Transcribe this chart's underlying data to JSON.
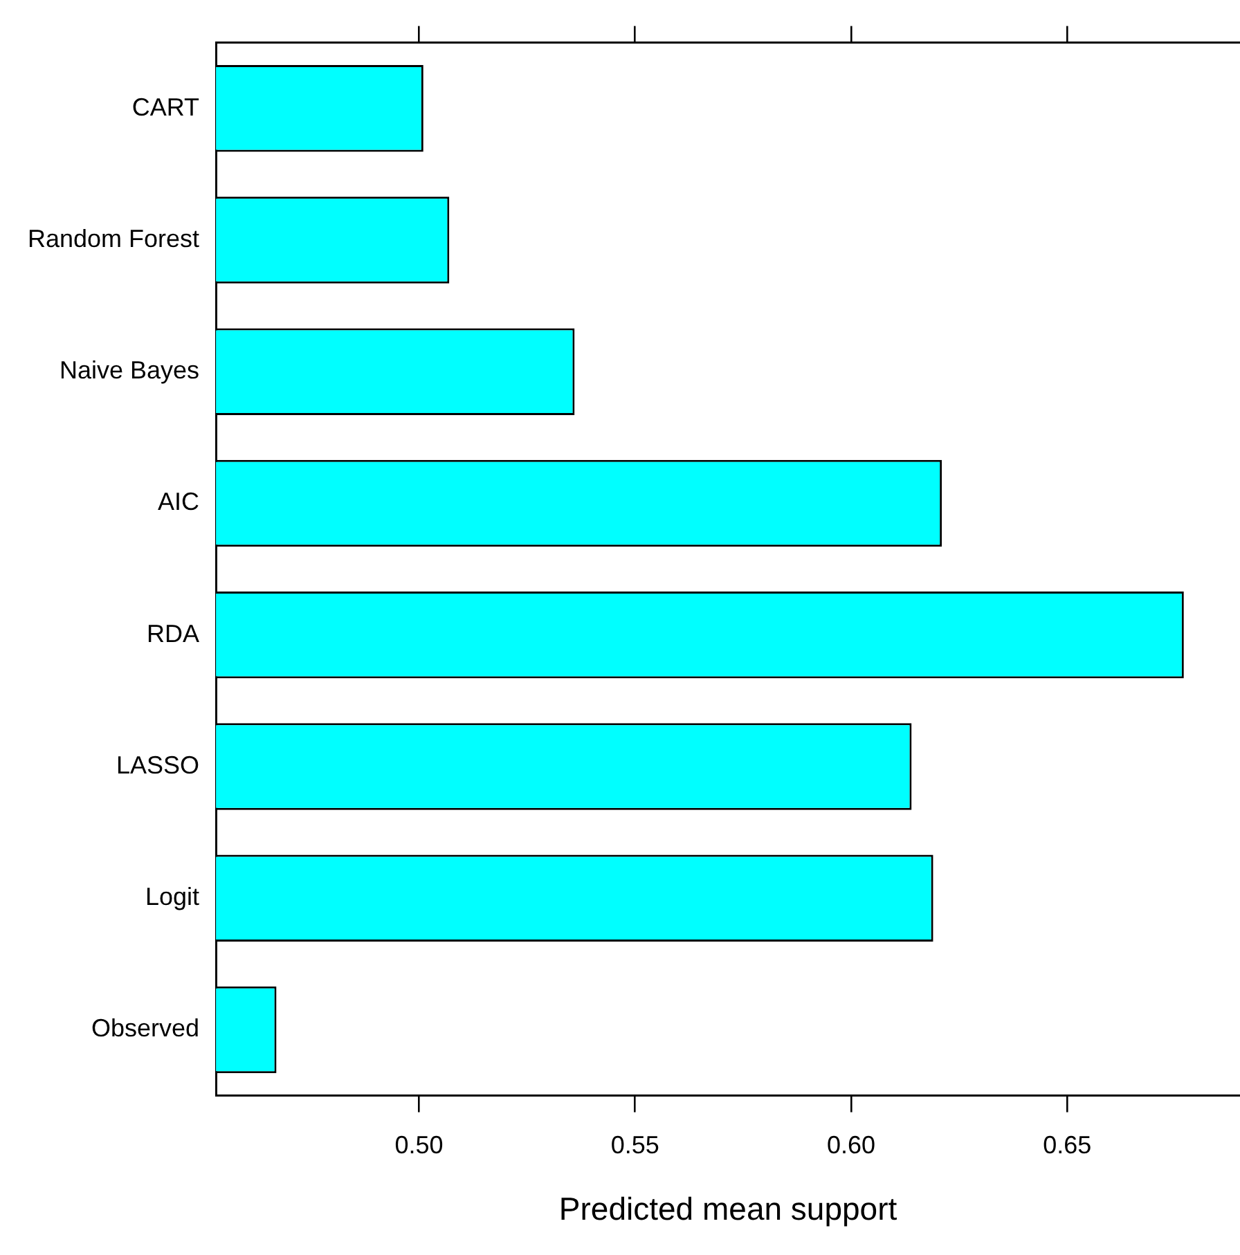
{
  "chart_data": {
    "type": "bar",
    "orientation": "horizontal",
    "xlabel": "Predicted mean support",
    "categories": [
      "CART",
      "Random Forest",
      "Naive Bayes",
      "AIC",
      "RDA",
      "LASSO",
      "Logit",
      "Observed"
    ],
    "values": [
      0.501,
      0.507,
      0.536,
      0.621,
      0.677,
      0.614,
      0.619,
      0.467
    ],
    "color": "#00ffff",
    "xlim": [
      0.453,
      0.69
    ],
    "xticks": [
      {
        "value": 0.5,
        "label": "0.50"
      },
      {
        "value": 0.55,
        "label": "0.55"
      },
      {
        "value": 0.6,
        "label": "0.60"
      },
      {
        "value": 0.65,
        "label": "0.65"
      }
    ],
    "grid": false,
    "legend": false
  }
}
